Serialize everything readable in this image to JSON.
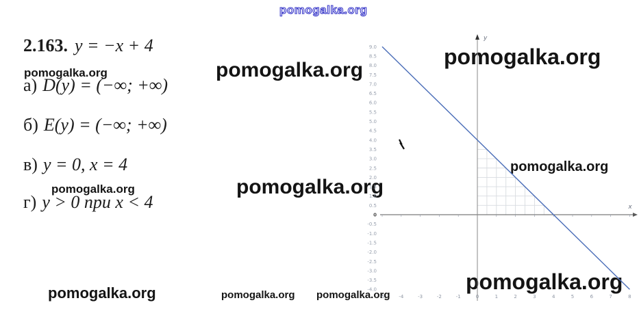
{
  "watermark": {
    "text": "pomogalka.org"
  },
  "problem": {
    "number": "2.163.",
    "equation": "y = −x + 4",
    "items": [
      {
        "label": "а)",
        "formula": "D(y) = (−∞; +∞)"
      },
      {
        "label": "б)",
        "formula": "E(y) = (−∞; +∞)"
      },
      {
        "label": "в)",
        "formula": "y = 0, x = 4"
      },
      {
        "label": "г)",
        "formula": "y > 0 при x < 4"
      }
    ]
  },
  "chart_data": {
    "type": "line",
    "title": "",
    "xlabel": "x",
    "ylabel": "y",
    "xlim": [
      -5,
      8.4
    ],
    "ylim": [
      -4.4,
      9.4
    ],
    "x_ticks": [
      "-5",
      "-4",
      "-3",
      "-2",
      "-1",
      "0",
      "1",
      "2",
      "3",
      "4",
      "5",
      "6",
      "7",
      "8"
    ],
    "y_ticks": [
      "9.0",
      "8.5",
      "8.0",
      "7.5",
      "7.0",
      "6.5",
      "6.0",
      "5.5",
      "5.0",
      "4.5",
      "4.0",
      "3.5",
      "3.0",
      "2.5",
      "2.0",
      "1.5",
      "1.0",
      "0.5",
      "0",
      "-0.5",
      "-1.0",
      "-1.5",
      "-2.0",
      "-2.5",
      "-3.0",
      "-3.5",
      "-4.0"
    ],
    "series": [
      {
        "name": "y = −x + 4",
        "points": [
          {
            "x": -5,
            "y": 9
          },
          {
            "x": 8,
            "y": -4
          }
        ],
        "color": "#4a6db8"
      }
    ],
    "x_intercept": 4,
    "y_intercept": 4,
    "shaded_region": {
      "type": "grid-triangle",
      "vertices": [
        [
          0,
          0
        ],
        [
          0,
          4
        ],
        [
          4,
          0
        ]
      ],
      "grid_step": 0.5
    },
    "legend": "none",
    "grid": "partial"
  },
  "colors": {
    "line": "#4a6db8",
    "x_axis": "#5a5a5a",
    "y_axis": "#8a8a8a",
    "grid": "#d8dce0",
    "tick_text": "#98a0ae",
    "text": "#1c1c1c",
    "watermark_outline": "#3a3ac8"
  }
}
